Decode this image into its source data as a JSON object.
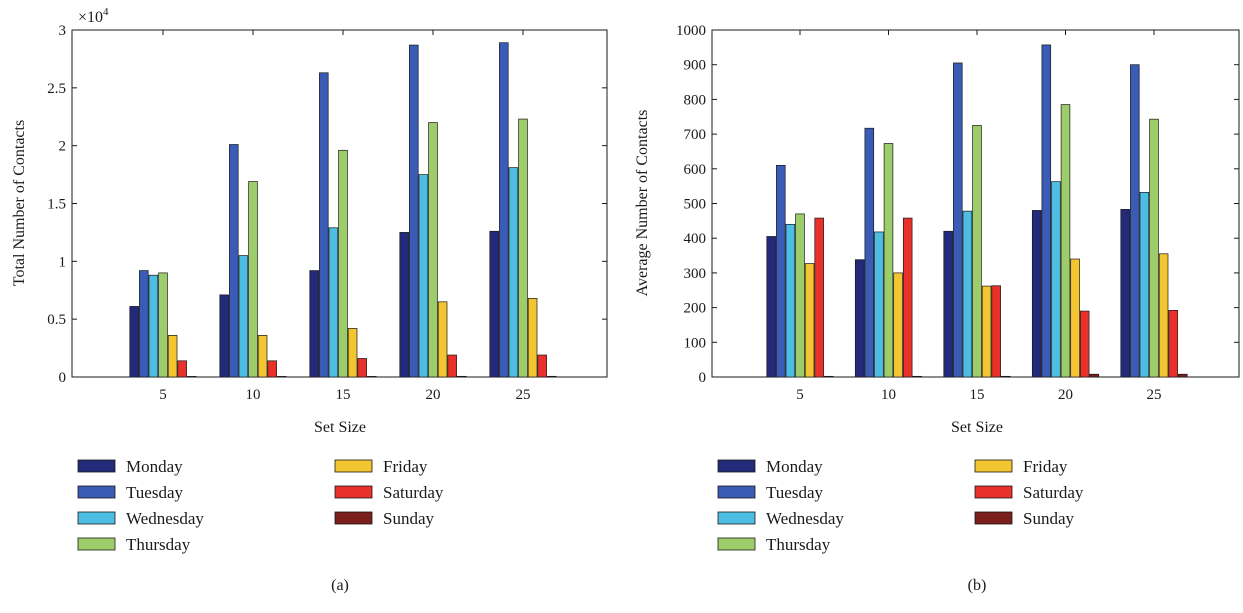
{
  "chart_data": [
    {
      "type": "bar",
      "panel_label": "(a)",
      "xlabel": "Set Size",
      "ylabel": "Total Number of Contacts",
      "exponent_label": "×10",
      "exponent_power": "4",
      "categories": [
        "5",
        "10",
        "15",
        "20",
        "25"
      ],
      "ylim": [
        0,
        3
      ],
      "yticks": [
        "0",
        "0.5",
        "1",
        "1.5",
        "2",
        "2.5",
        "3"
      ],
      "grid": false,
      "legend_position": "below",
      "series": [
        {
          "name": "Monday",
          "color": "#232a7a",
          "values": [
            0.61,
            0.71,
            0.92,
            1.25,
            1.26
          ]
        },
        {
          "name": "Tuesday",
          "color": "#3a5bb6",
          "values": [
            0.92,
            2.01,
            2.63,
            2.87,
            2.89
          ]
        },
        {
          "name": "Wednesday",
          "color": "#4dbde3",
          "values": [
            0.88,
            1.05,
            1.29,
            1.75,
            1.81
          ]
        },
        {
          "name": "Thursday",
          "color": "#9ccd6a",
          "values": [
            0.9,
            1.69,
            1.96,
            2.2,
            2.23
          ]
        },
        {
          "name": "Friday",
          "color": "#f3c531",
          "values": [
            0.36,
            0.36,
            0.42,
            0.65,
            0.68
          ]
        },
        {
          "name": "Saturday",
          "color": "#e7312a",
          "values": [
            0.14,
            0.14,
            0.16,
            0.19,
            0.19
          ]
        },
        {
          "name": "Sunday",
          "color": "#7a1f1c",
          "values": [
            0.005,
            0.005,
            0.005,
            0.006,
            0.006
          ]
        }
      ]
    },
    {
      "type": "bar",
      "panel_label": "(b)",
      "xlabel": "Set Size",
      "ylabel": "Average Number of Contacts",
      "categories": [
        "5",
        "10",
        "15",
        "20",
        "25"
      ],
      "ylim": [
        0,
        1000
      ],
      "yticks": [
        "0",
        "100",
        "200",
        "300",
        "400",
        "500",
        "600",
        "700",
        "800",
        "900",
        "1000"
      ],
      "grid": false,
      "legend_position": "below",
      "series": [
        {
          "name": "Monday",
          "color": "#232a7a",
          "values": [
            405,
            338,
            420,
            480,
            483
          ]
        },
        {
          "name": "Tuesday",
          "color": "#3a5bb6",
          "values": [
            610,
            717,
            905,
            957,
            900
          ]
        },
        {
          "name": "Wednesday",
          "color": "#4dbde3",
          "values": [
            440,
            418,
            478,
            563,
            532
          ]
        },
        {
          "name": "Thursday",
          "color": "#9ccd6a",
          "values": [
            470,
            673,
            725,
            785,
            743
          ]
        },
        {
          "name": "Friday",
          "color": "#f3c531",
          "values": [
            327,
            300,
            262,
            340,
            355
          ]
        },
        {
          "name": "Saturday",
          "color": "#e7312a",
          "values": [
            458,
            458,
            263,
            190,
            192
          ]
        },
        {
          "name": "Sunday",
          "color": "#7a1f1c",
          "values": [
            2,
            2,
            2,
            8,
            8
          ]
        }
      ]
    }
  ]
}
